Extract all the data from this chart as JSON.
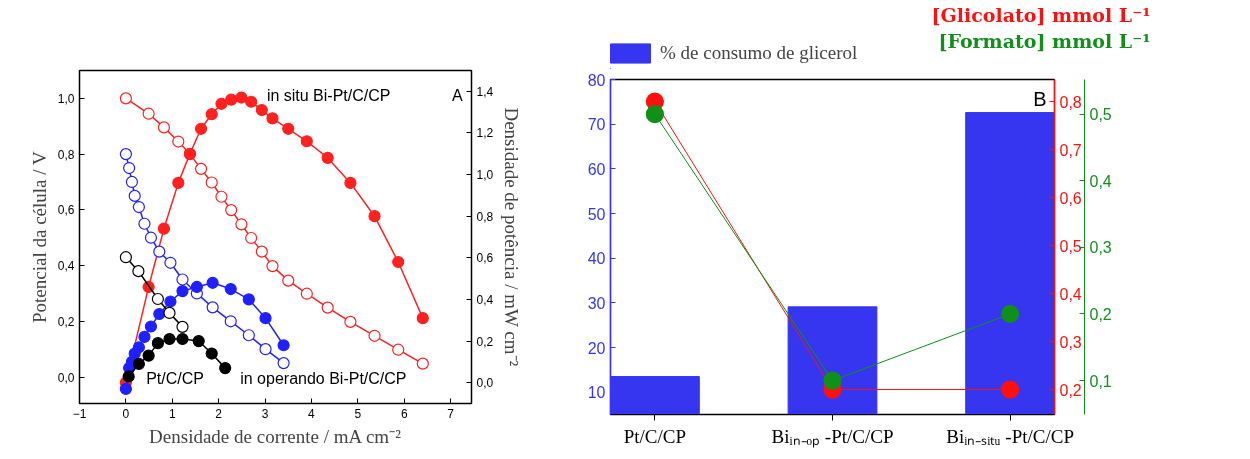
{
  "chart_data": [
    {
      "type": "line",
      "xlabel": "Densidade de corrente / mA cm⁻²",
      "ylabel": "Potencial da célula / V",
      "y2label": "Densidade de potência / mW cm⁻²",
      "xlim": [
        -1,
        7.45
      ],
      "ylim": [
        -0.095,
        1.1
      ],
      "y2lim": [
        -0.1,
        1.5
      ],
      "xticks": [
        -1,
        0,
        1,
        2,
        3,
        4,
        5,
        6,
        7
      ],
      "yticks": [
        {
          "value": 0,
          "label": "0,0"
        },
        {
          "value": 0.2,
          "label": "0,2"
        },
        {
          "value": 0.4,
          "label": "0,4"
        },
        {
          "value": 0.6,
          "label": "0,6"
        },
        {
          "value": 0.8,
          "label": "0,8"
        },
        {
          "value": 1.0,
          "label": "1,0"
        }
      ],
      "y2ticks": [
        {
          "value": 0,
          "label": "0,0"
        },
        {
          "value": 0.2,
          "label": "0,2"
        },
        {
          "value": 0.4,
          "label": "0,4"
        },
        {
          "value": 0.6,
          "label": "0,6"
        },
        {
          "value": 0.8,
          "label": "0,8"
        },
        {
          "value": 1.0,
          "label": "1,0"
        },
        {
          "value": 1.2,
          "label": "1,2"
        },
        {
          "value": 1.4,
          "label": "1,4"
        }
      ],
      "line_style": "solid",
      "series": [
        {
          "color": "#ff2020",
          "marker": "circle_open",
          "x": [
            0,
            0.49,
            0.82,
            1.13,
            1.38,
            1.62,
            1.85,
            2.06,
            2.27,
            2.49,
            2.7,
            2.93,
            3.16,
            3.5,
            3.9,
            4.35,
            4.84,
            5.36,
            5.87,
            6.4
          ],
          "values": [
            1.0,
            0.945,
            0.896,
            0.845,
            0.8,
            0.747,
            0.698,
            0.647,
            0.599,
            0.548,
            0.499,
            0.45,
            0.398,
            0.346,
            0.299,
            0.249,
            0.198,
            0.148,
            0.098,
            0.048
          ]
        },
        {
          "color": "#ff2020",
          "marker": "circle",
          "axis": "y2",
          "x": [
            0,
            0.49,
            0.82,
            1.13,
            1.38,
            1.62,
            1.85,
            2.06,
            2.27,
            2.49,
            2.7,
            2.93,
            3.16,
            3.5,
            3.9,
            4.35,
            4.84,
            5.36,
            5.87,
            6.4
          ],
          "values": [
            0,
            0.46,
            0.74,
            0.96,
            1.1,
            1.22,
            1.29,
            1.34,
            1.36,
            1.37,
            1.35,
            1.31,
            1.27,
            1.22,
            1.16,
            1.08,
            0.96,
            0.8,
            0.58,
            0.31
          ]
        },
        {
          "color": "#2020ff",
          "marker": "circle_open",
          "x": [
            0,
            0.07,
            0.13,
            0.19,
            0.28,
            0.4,
            0.54,
            0.72,
            0.96,
            1.22,
            1.53,
            1.87,
            2.26,
            2.65,
            3.01,
            3.4
          ],
          "values": [
            0.8,
            0.75,
            0.7,
            0.65,
            0.61,
            0.55,
            0.5,
            0.45,
            0.41,
            0.35,
            0.3,
            0.25,
            0.2,
            0.15,
            0.1,
            0.05
          ]
        },
        {
          "color": "#2020ff",
          "marker": "circle",
          "axis": "y2",
          "x": [
            0,
            0.07,
            0.13,
            0.19,
            0.28,
            0.4,
            0.54,
            0.72,
            0.96,
            1.22,
            1.53,
            1.87,
            2.26,
            2.65,
            3.01,
            3.4
          ],
          "values": [
            -0.03,
            0.07,
            0.1,
            0.14,
            0.17,
            0.22,
            0.27,
            0.33,
            0.39,
            0.44,
            0.46,
            0.48,
            0.45,
            0.4,
            0.31,
            0.18
          ]
        },
        {
          "color": "#000000",
          "marker": "circle_open",
          "x": [
            0,
            0.27,
            0.69,
            0.94,
            1.22
          ],
          "values": [
            0.43,
            0.38,
            0.28,
            0.23,
            0.18
          ]
        },
        {
          "color": "#000000",
          "marker": "circle",
          "axis": "y2",
          "x": [
            0.06,
            0.28,
            0.49,
            0.69,
            0.94,
            1.22,
            1.57,
            1.85,
            2.14
          ],
          "values": [
            0.03,
            0.09,
            0.13,
            0.19,
            0.21,
            0.21,
            0.2,
            0.14,
            0.07
          ]
        }
      ],
      "annotations": [
        "in situ Bi-Pt/C/CP",
        "Pt/C/CP",
        "in operando Bi-Pt/C/CP",
        "A"
      ]
    },
    {
      "type": "bar",
      "categories": [
        "Pt/C/CP",
        "Biᵢₙ₋ₒₚ -Pt/C/CP",
        "Biᵢₙ₋ₛᵢₜᵤ -Pt/C/CP"
      ],
      "ylim": [
        5,
        80
      ],
      "yticks": [
        10,
        20,
        30,
        40,
        50,
        60,
        70,
        80
      ],
      "y2label": "[Glicolato] mmol L⁻¹",
      "y2lim": [
        0.148,
        0.846
      ],
      "y2ticks": [
        {
          "value": 0.2,
          "label": "0,2"
        },
        {
          "value": 0.3,
          "label": "0,3"
        },
        {
          "value": 0.4,
          "label": "0,4"
        },
        {
          "value": 0.5,
          "label": "0,5"
        },
        {
          "value": 0.6,
          "label": "0,6"
        },
        {
          "value": 0.7,
          "label": "0,7"
        },
        {
          "value": 0.8,
          "label": "0,8"
        }
      ],
      "y3label": "[Formato] mmol L⁻¹",
      "y3lim": [
        0.049,
        0.552
      ],
      "y3ticks": [
        {
          "value": 0.1,
          "label": "0,1"
        },
        {
          "value": 0.2,
          "label": "0,2"
        },
        {
          "value": 0.3,
          "label": "0,3"
        },
        {
          "value": 0.4,
          "label": "0,4"
        },
        {
          "value": 0.5,
          "label": "0,5"
        }
      ],
      "legend": "top left",
      "marker": "circle",
      "series": [
        {
          "name": "% de consumo de glicerol",
          "color": "#3636f0",
          "values": [
            13.5,
            29.1,
            72.6
          ]
        },
        {
          "type": "line",
          "color": "#ff1010",
          "axis": "y2",
          "values": [
            0.8,
            0.2,
            0.2
          ]
        },
        {
          "type": "line",
          "color": "#10901a",
          "axis": "y3",
          "values": [
            0.5,
            0.1,
            0.2
          ]
        }
      ],
      "annotations": [
        "B"
      ]
    }
  ]
}
